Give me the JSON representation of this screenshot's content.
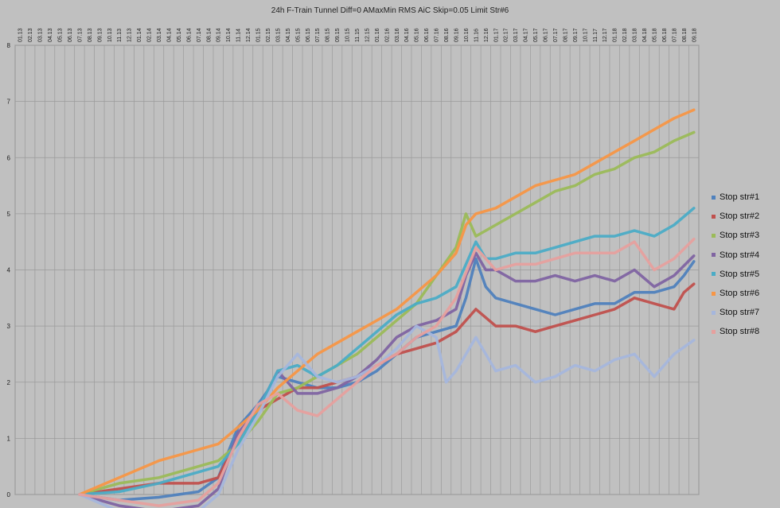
{
  "chart_data": {
    "type": "line",
    "title": "24h F-Train Tunnel Diff=0 AMaxMin RMS AiC Skip=0.05 Limit Str#6",
    "ylim": [
      0,
      8
    ],
    "yticks": [
      0,
      1,
      2,
      3,
      4,
      5,
      6,
      7,
      8
    ],
    "ytick_labels": [
      "0",
      "1",
      "2",
      "3",
      "4",
      "5",
      "6",
      "7",
      "8"
    ],
    "x_tick_labels": [
      "01.13",
      "02.13",
      "03.13",
      "04.13",
      "05.13",
      "06.13",
      "07.13",
      "08.13",
      "09.13",
      "10.13",
      "11.13",
      "12.13",
      "01.14",
      "02.14",
      "03.14",
      "04.14",
      "05.14",
      "06.14",
      "07.14",
      "08.14",
      "09.14",
      "10.14",
      "11.14",
      "12.14",
      "01.15",
      "02.15",
      "03.15",
      "04.15",
      "05.15",
      "06.15",
      "07.15",
      "08.15",
      "09.15",
      "10.15",
      "11.15",
      "12.15",
      "01.16",
      "02.16",
      "03.16",
      "04.16",
      "05.16",
      "06.16",
      "07.16",
      "08.16",
      "09.16",
      "10.16",
      "11.16",
      "12.16",
      "01.17",
      "02.17",
      "03.17",
      "04.17",
      "05.17",
      "06.17",
      "07.17",
      "08.17",
      "09.17",
      "10.17",
      "11.17",
      "12.17",
      "01.18",
      "02.18",
      "03.18",
      "04.18",
      "05.18",
      "06.18",
      "07.18",
      "08.18",
      "09.18"
    ],
    "grid": true,
    "legend_position": "right",
    "x_start_index": 6,
    "series": [
      {
        "name": "Stop str#1",
        "color": "#4f81bd",
        "points": [
          [
            6,
            0
          ],
          [
            10,
            -0.1
          ],
          [
            14,
            -0.05
          ],
          [
            18,
            0.05
          ],
          [
            20,
            0.3
          ],
          [
            22,
            1.2
          ],
          [
            24,
            1.6
          ],
          [
            26,
            2.1
          ],
          [
            28,
            2.0
          ],
          [
            30,
            1.9
          ],
          [
            32,
            1.9
          ],
          [
            34,
            2.0
          ],
          [
            36,
            2.2
          ],
          [
            38,
            2.5
          ],
          [
            40,
            2.8
          ],
          [
            42,
            2.9
          ],
          [
            44,
            3.0
          ],
          [
            45,
            3.5
          ],
          [
            46,
            4.2
          ],
          [
            47,
            3.7
          ],
          [
            48,
            3.5
          ],
          [
            50,
            3.4
          ],
          [
            52,
            3.3
          ],
          [
            54,
            3.2
          ],
          [
            56,
            3.3
          ],
          [
            58,
            3.4
          ],
          [
            60,
            3.4
          ],
          [
            62,
            3.6
          ],
          [
            64,
            3.6
          ],
          [
            66,
            3.7
          ],
          [
            67,
            3.9
          ],
          [
            68,
            4.15
          ]
        ]
      },
      {
        "name": "Stop str#2",
        "color": "#c0504d",
        "points": [
          [
            6,
            0
          ],
          [
            10,
            0.1
          ],
          [
            14,
            0.2
          ],
          [
            18,
            0.2
          ],
          [
            20,
            0.3
          ],
          [
            22,
            1.0
          ],
          [
            24,
            1.5
          ],
          [
            26,
            1.7
          ],
          [
            28,
            1.9
          ],
          [
            30,
            1.9
          ],
          [
            32,
            2.0
          ],
          [
            34,
            2.1
          ],
          [
            36,
            2.3
          ],
          [
            38,
            2.5
          ],
          [
            40,
            2.6
          ],
          [
            42,
            2.7
          ],
          [
            44,
            2.9
          ],
          [
            46,
            3.3
          ],
          [
            48,
            3.0
          ],
          [
            50,
            3.0
          ],
          [
            52,
            2.9
          ],
          [
            54,
            3.0
          ],
          [
            56,
            3.1
          ],
          [
            58,
            3.2
          ],
          [
            60,
            3.3
          ],
          [
            62,
            3.5
          ],
          [
            64,
            3.4
          ],
          [
            66,
            3.3
          ],
          [
            67,
            3.6
          ],
          [
            68,
            3.75
          ]
        ]
      },
      {
        "name": "Stop str#3",
        "color": "#9bbb59",
        "points": [
          [
            6,
            0
          ],
          [
            10,
            0.2
          ],
          [
            14,
            0.3
          ],
          [
            18,
            0.5
          ],
          [
            20,
            0.6
          ],
          [
            22,
            0.9
          ],
          [
            24,
            1.3
          ],
          [
            26,
            1.8
          ],
          [
            28,
            1.9
          ],
          [
            30,
            2.1
          ],
          [
            32,
            2.3
          ],
          [
            34,
            2.5
          ],
          [
            36,
            2.8
          ],
          [
            38,
            3.1
          ],
          [
            40,
            3.4
          ],
          [
            42,
            3.9
          ],
          [
            44,
            4.4
          ],
          [
            45,
            5.0
          ],
          [
            46,
            4.6
          ],
          [
            48,
            4.8
          ],
          [
            50,
            5.0
          ],
          [
            52,
            5.2
          ],
          [
            54,
            5.4
          ],
          [
            56,
            5.5
          ],
          [
            58,
            5.7
          ],
          [
            60,
            5.8
          ],
          [
            62,
            6.0
          ],
          [
            64,
            6.1
          ],
          [
            66,
            6.3
          ],
          [
            68,
            6.45
          ]
        ]
      },
      {
        "name": "Stop str#4",
        "color": "#8064a2",
        "points": [
          [
            6,
            0
          ],
          [
            10,
            -0.2
          ],
          [
            14,
            -0.3
          ],
          [
            18,
            -0.2
          ],
          [
            20,
            0.1
          ],
          [
            22,
            1.1
          ],
          [
            24,
            1.5
          ],
          [
            26,
            2.2
          ],
          [
            28,
            1.8
          ],
          [
            30,
            1.8
          ],
          [
            32,
            1.9
          ],
          [
            34,
            2.1
          ],
          [
            36,
            2.4
          ],
          [
            38,
            2.8
          ],
          [
            40,
            3.0
          ],
          [
            42,
            3.1
          ],
          [
            44,
            3.3
          ],
          [
            45,
            3.9
          ],
          [
            46,
            4.3
          ],
          [
            47,
            4.0
          ],
          [
            48,
            4.0
          ],
          [
            50,
            3.8
          ],
          [
            52,
            3.8
          ],
          [
            54,
            3.9
          ],
          [
            56,
            3.8
          ],
          [
            58,
            3.9
          ],
          [
            60,
            3.8
          ],
          [
            62,
            4.0
          ],
          [
            64,
            3.7
          ],
          [
            66,
            3.9
          ],
          [
            68,
            4.25
          ]
        ]
      },
      {
        "name": "Stop str#5",
        "color": "#4bacc6",
        "points": [
          [
            6,
            0
          ],
          [
            10,
            0.05
          ],
          [
            14,
            0.2
          ],
          [
            18,
            0.4
          ],
          [
            20,
            0.5
          ],
          [
            22,
            0.9
          ],
          [
            24,
            1.5
          ],
          [
            26,
            2.2
          ],
          [
            28,
            2.3
          ],
          [
            30,
            2.1
          ],
          [
            32,
            2.3
          ],
          [
            34,
            2.6
          ],
          [
            36,
            2.9
          ],
          [
            38,
            3.2
          ],
          [
            40,
            3.4
          ],
          [
            42,
            3.5
          ],
          [
            44,
            3.7
          ],
          [
            45,
            4.1
          ],
          [
            46,
            4.5
          ],
          [
            47,
            4.2
          ],
          [
            48,
            4.2
          ],
          [
            50,
            4.3
          ],
          [
            52,
            4.3
          ],
          [
            54,
            4.4
          ],
          [
            56,
            4.5
          ],
          [
            58,
            4.6
          ],
          [
            60,
            4.6
          ],
          [
            62,
            4.7
          ],
          [
            64,
            4.6
          ],
          [
            66,
            4.8
          ],
          [
            68,
            5.1
          ]
        ]
      },
      {
        "name": "Stop str#6",
        "color": "#f79646",
        "points": [
          [
            6,
            0
          ],
          [
            10,
            0.3
          ],
          [
            14,
            0.6
          ],
          [
            18,
            0.8
          ],
          [
            20,
            0.9
          ],
          [
            22,
            1.2
          ],
          [
            24,
            1.5
          ],
          [
            26,
            1.9
          ],
          [
            28,
            2.2
          ],
          [
            30,
            2.5
          ],
          [
            32,
            2.7
          ],
          [
            34,
            2.9
          ],
          [
            36,
            3.1
          ],
          [
            38,
            3.3
          ],
          [
            40,
            3.6
          ],
          [
            42,
            3.9
          ],
          [
            44,
            4.3
          ],
          [
            45,
            4.8
          ],
          [
            46,
            5.0
          ],
          [
            48,
            5.1
          ],
          [
            50,
            5.3
          ],
          [
            52,
            5.5
          ],
          [
            54,
            5.6
          ],
          [
            56,
            5.7
          ],
          [
            58,
            5.9
          ],
          [
            60,
            6.1
          ],
          [
            62,
            6.3
          ],
          [
            64,
            6.5
          ],
          [
            66,
            6.7
          ],
          [
            68,
            6.85
          ]
        ]
      },
      {
        "name": "Stop str#7",
        "color": "#a5b6dc",
        "points": [
          [
            6,
            0
          ],
          [
            10,
            -0.3
          ],
          [
            14,
            -0.4
          ],
          [
            18,
            -0.3
          ],
          [
            20,
            0.0
          ],
          [
            22,
            0.8
          ],
          [
            24,
            1.4
          ],
          [
            26,
            2.1
          ],
          [
            28,
            2.5
          ],
          [
            30,
            2.1
          ],
          [
            32,
            2.0
          ],
          [
            34,
            2.1
          ],
          [
            36,
            2.3
          ],
          [
            38,
            2.6
          ],
          [
            40,
            3.0
          ],
          [
            42,
            2.8
          ],
          [
            43,
            2.0
          ],
          [
            44,
            2.2
          ],
          [
            46,
            2.8
          ],
          [
            48,
            2.2
          ],
          [
            50,
            2.3
          ],
          [
            52,
            2.0
          ],
          [
            54,
            2.1
          ],
          [
            56,
            2.3
          ],
          [
            58,
            2.2
          ],
          [
            60,
            2.4
          ],
          [
            62,
            2.5
          ],
          [
            64,
            2.1
          ],
          [
            66,
            2.5
          ],
          [
            68,
            2.75
          ]
        ]
      },
      {
        "name": "Stop str#8",
        "color": "#e6a09e",
        "points": [
          [
            6,
            0
          ],
          [
            10,
            -0.1
          ],
          [
            14,
            -0.2
          ],
          [
            18,
            -0.1
          ],
          [
            20,
            0.2
          ],
          [
            22,
            1.0
          ],
          [
            24,
            1.6
          ],
          [
            26,
            1.8
          ],
          [
            28,
            1.5
          ],
          [
            30,
            1.4
          ],
          [
            32,
            1.7
          ],
          [
            34,
            2.0
          ],
          [
            36,
            2.3
          ],
          [
            38,
            2.5
          ],
          [
            40,
            2.8
          ],
          [
            42,
            3.0
          ],
          [
            44,
            3.5
          ],
          [
            46,
            4.4
          ],
          [
            48,
            4.0
          ],
          [
            50,
            4.1
          ],
          [
            52,
            4.1
          ],
          [
            54,
            4.2
          ],
          [
            56,
            4.3
          ],
          [
            58,
            4.3
          ],
          [
            60,
            4.3
          ],
          [
            62,
            4.5
          ],
          [
            64,
            4.0
          ],
          [
            66,
            4.2
          ],
          [
            68,
            4.55
          ]
        ]
      }
    ]
  }
}
